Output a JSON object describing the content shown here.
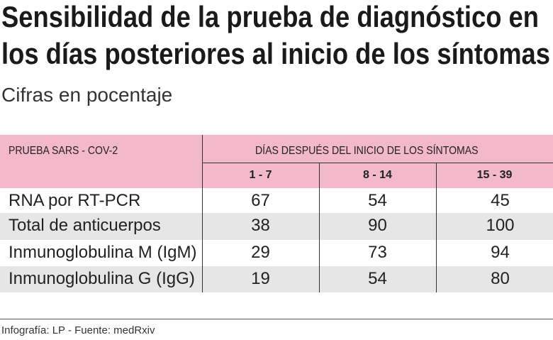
{
  "header": {
    "title_lines": [
      "Sensibilidad de la prueba de diagnóstico en",
      "los días posteriores al inicio de los síntomas"
    ],
    "subtitle": "Cifras en pocentaje"
  },
  "table": {
    "corner": "PRUEBA SARS - COV-2",
    "group": "DÍAS DESPUÉS DEL INICIO DE LOS SÍNTOMAS",
    "columns": [
      "1 - 7",
      "8 - 14",
      "15 - 39"
    ],
    "rows": [
      {
        "label": "RNA por RT-PCR",
        "values": [
          67,
          54,
          45
        ]
      },
      {
        "label": "Total de anticuerpos",
        "values": [
          38,
          90,
          100
        ]
      },
      {
        "label": "Inmunoglobulina M (IgM)",
        "values": [
          29,
          73,
          94
        ]
      },
      {
        "label": "Inmunoglobulina G (IgG)",
        "values": [
          19,
          54,
          80
        ]
      }
    ]
  },
  "footer": {
    "source": "Infografía: LP - Fuente: medRxiv"
  }
}
